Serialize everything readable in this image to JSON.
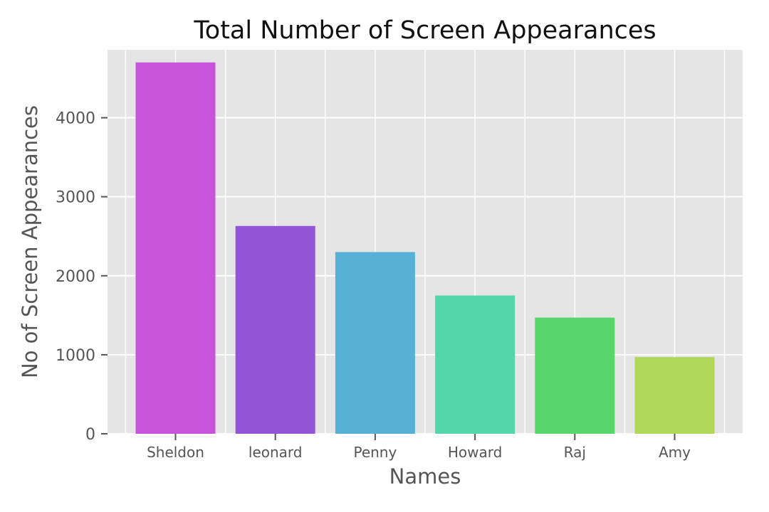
{
  "chart_data": {
    "type": "bar",
    "title": "Total Number of Screen Appearances",
    "xlabel": "Names",
    "ylabel": "No of Screen Appearances",
    "categories": [
      "Sheldon",
      "leonard",
      "Penny",
      "Howard",
      "Raj",
      "Amy"
    ],
    "values": [
      4700,
      2630,
      2300,
      1750,
      1470,
      970
    ],
    "colors": [
      "#c653d9",
      "#9354d7",
      "#56b0d7",
      "#54d6ab",
      "#57d66b",
      "#afd657"
    ],
    "ylim": [
      0,
      4860
    ],
    "yticks": [
      0,
      1000,
      2000,
      3000,
      4000
    ],
    "grid": true,
    "style": "ggplot",
    "background_color": "#e5e5e5",
    "grid_color": "#ffffff"
  }
}
